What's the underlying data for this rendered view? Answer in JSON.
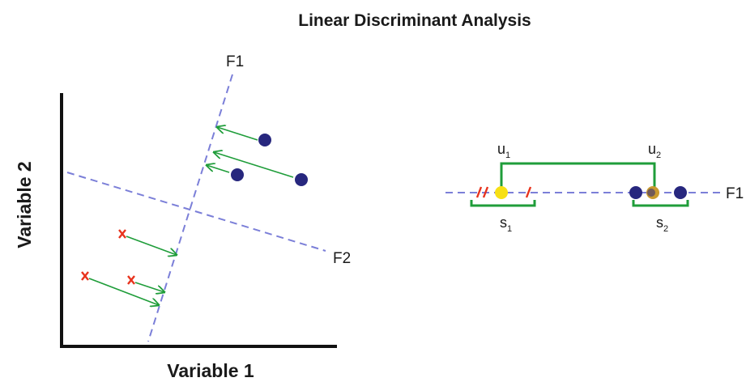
{
  "title": "Linear Discriminant Analysis",
  "left_panel": {
    "xlabel": "Variable 1",
    "ylabel": "Variable 2",
    "line_f1": "F1",
    "line_f2": "F2",
    "class1_marker": "cross",
    "class2_marker": "filled-circle",
    "projection_arrow_color": "#1f9d3a"
  },
  "right_panel": {
    "axis_label": "F1",
    "mean_1": {
      "letter": "u",
      "sub": "1"
    },
    "mean_2": {
      "letter": "u",
      "sub": "2"
    },
    "spread_1": {
      "letter": "s",
      "sub": "1"
    },
    "spread_2": {
      "letter": "s",
      "sub": "2"
    }
  },
  "colors": {
    "axis": "#111111",
    "discriminant_line": "#7b7fd8",
    "projection": "#1f9d3a",
    "class1": "#e8331d",
    "class2": "#27277e",
    "mean1": "#f7e015",
    "mean2": "#c99a2e"
  }
}
